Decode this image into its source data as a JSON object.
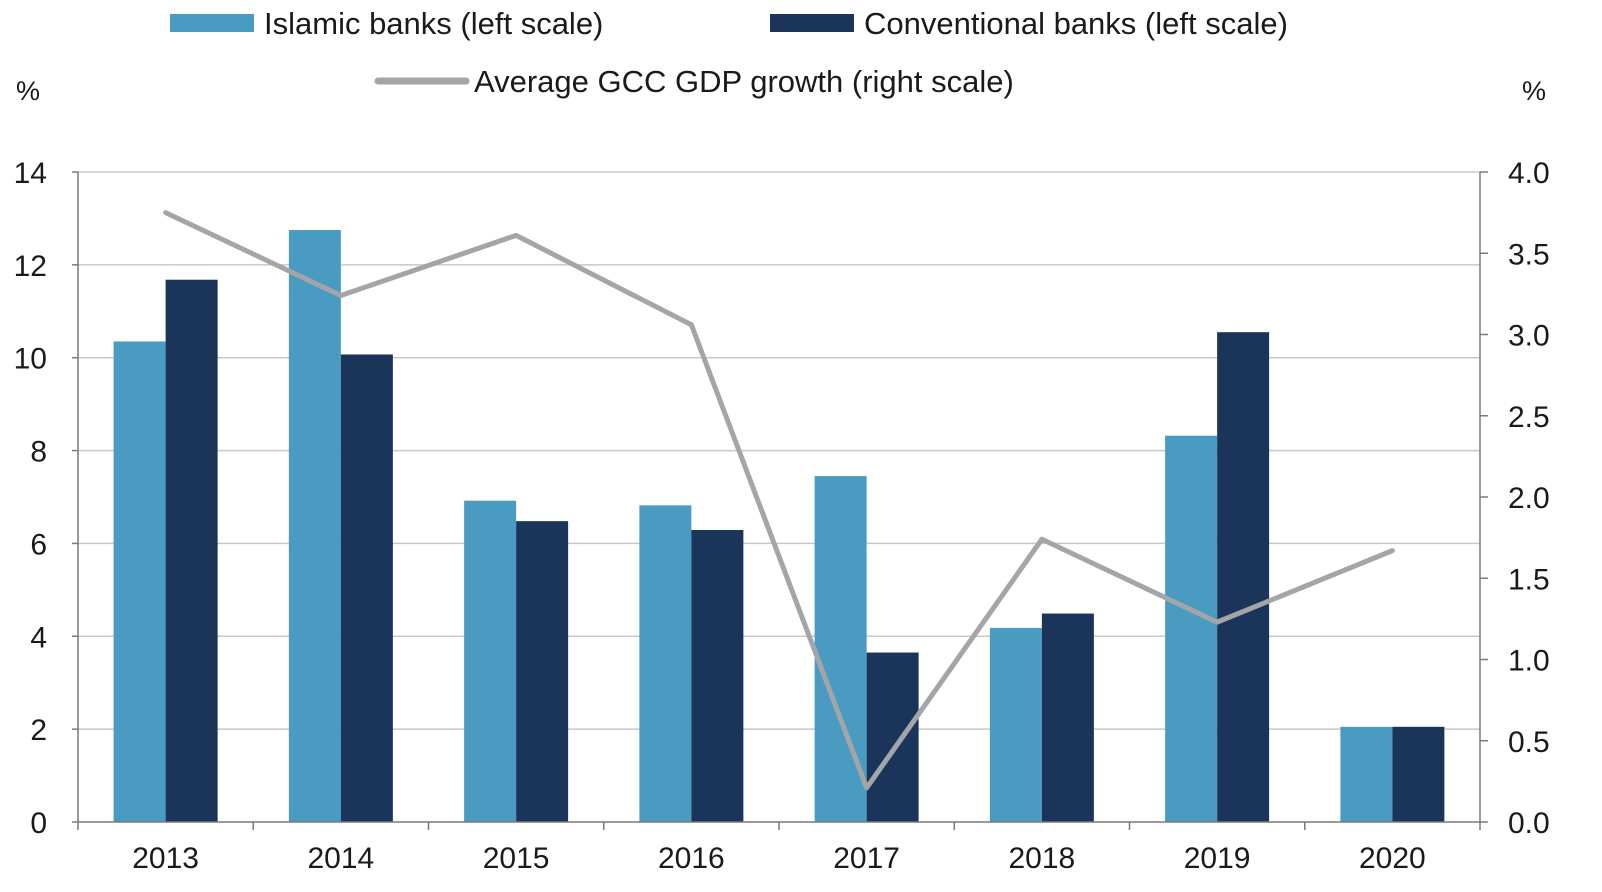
{
  "chart_data": {
    "type": "bar",
    "categories": [
      "2013",
      "2014",
      "2015",
      "2016",
      "2017",
      "2018",
      "2019",
      "2020"
    ],
    "series": [
      {
        "name": "Islamic banks (left scale)",
        "type": "bar",
        "axis": "left",
        "color": "#4a9bc1",
        "values": [
          10.35,
          12.75,
          6.92,
          6.82,
          7.45,
          4.18,
          8.32,
          2.05
        ]
      },
      {
        "name": "Conventional banks (left scale)",
        "type": "bar",
        "axis": "left",
        "color": "#1b355a",
        "values": [
          11.68,
          10.07,
          6.48,
          6.29,
          3.65,
          4.49,
          10.55,
          2.05
        ]
      },
      {
        "name": "Average GCC GDP growth (right scale)",
        "type": "line",
        "axis": "right",
        "color": "#a3a5a8",
        "values": [
          3.75,
          3.24,
          3.61,
          3.06,
          0.21,
          1.74,
          1.23,
          1.67
        ]
      }
    ],
    "y_left": {
      "unit": "%",
      "min": 0,
      "max": 14,
      "ticks": [
        0,
        2,
        4,
        6,
        8,
        10,
        12,
        14
      ]
    },
    "y_right": {
      "unit": "%",
      "min": 0,
      "max": 4,
      "ticks": [
        "0.0",
        "0.5",
        "1.0",
        "1.5",
        "2.0",
        "2.5",
        "3.0",
        "3.5",
        "4.0"
      ]
    },
    "grid": true,
    "legend_position": "top"
  }
}
